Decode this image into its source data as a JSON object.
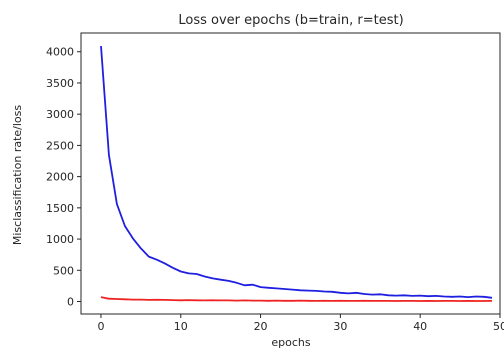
{
  "chart_data": {
    "type": "line",
    "title": "Loss over epochs (b=train, r=test)",
    "xlabel": "epochs",
    "ylabel": "Misclassification rate/loss",
    "xlim": [
      -2.5,
      50
    ],
    "ylim": [
      -200,
      4300
    ],
    "xticks": [
      0,
      10,
      20,
      30,
      40,
      50
    ],
    "yticks": [
      0,
      500,
      1000,
      1500,
      2000,
      2500,
      3000,
      3500,
      4000
    ],
    "grid": false,
    "series": [
      {
        "color": "#1f1fe0",
        "x": [
          0,
          1,
          2,
          3,
          4,
          5,
          6,
          7,
          8,
          9,
          10,
          11,
          12,
          13,
          14,
          15,
          16,
          17,
          18,
          19,
          20,
          21,
          22,
          23,
          24,
          25,
          26,
          27,
          28,
          29,
          30,
          31,
          32,
          33,
          34,
          35,
          36,
          37,
          38,
          39,
          40,
          41,
          42,
          43,
          44,
          45,
          46,
          47,
          48,
          49
        ],
        "y": [
          4090,
          2350,
          1560,
          1210,
          1010,
          850,
          720,
          670,
          610,
          540,
          480,
          450,
          440,
          400,
          370,
          350,
          330,
          300,
          260,
          270,
          230,
          220,
          210,
          200,
          190,
          180,
          175,
          170,
          160,
          155,
          140,
          130,
          140,
          120,
          110,
          115,
          100,
          95,
          100,
          90,
          95,
          85,
          90,
          80,
          75,
          80,
          70,
          80,
          75,
          60
        ]
      },
      {
        "color": "#ee2222",
        "x": [
          0,
          1,
          2,
          3,
          4,
          5,
          6,
          7,
          8,
          9,
          10,
          11,
          12,
          13,
          14,
          15,
          16,
          17,
          18,
          19,
          20,
          21,
          22,
          23,
          24,
          25,
          26,
          27,
          28,
          29,
          30,
          31,
          32,
          33,
          34,
          35,
          36,
          37,
          38,
          39,
          40,
          41,
          42,
          43,
          44,
          45,
          46,
          47,
          48,
          49
        ],
        "y": [
          70,
          45,
          40,
          35,
          30,
          30,
          25,
          28,
          25,
          22,
          20,
          22,
          20,
          18,
          20,
          18,
          18,
          15,
          18,
          15,
          15,
          12,
          15,
          12,
          12,
          14,
          12,
          10,
          12,
          10,
          12,
          10,
          10,
          12,
          10,
          10,
          10,
          8,
          10,
          10,
          8,
          10,
          8,
          10,
          10,
          8,
          10,
          8,
          8,
          10
        ]
      }
    ]
  }
}
